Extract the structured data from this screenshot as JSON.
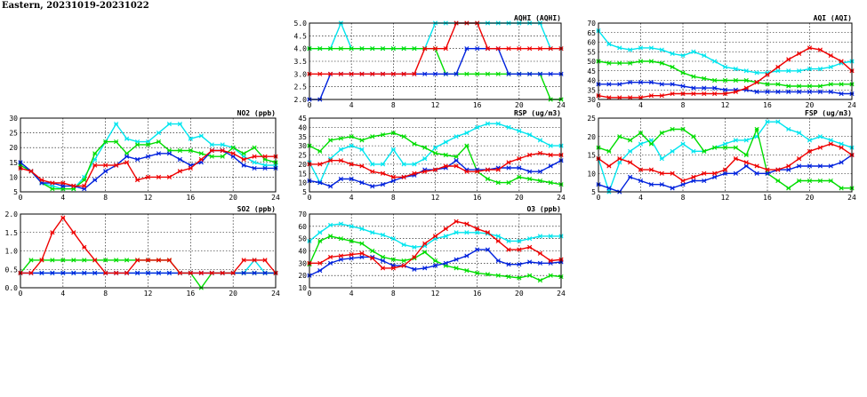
{
  "page": {
    "title": "Eastern, 20231019-20231022"
  },
  "colors": {
    "cyan": "#00e5ee",
    "green": "#00dd00",
    "blue": "#0022dd",
    "red": "#ee0000"
  },
  "chart_data": [
    {
      "id": "aqhi",
      "type": "line",
      "title": "AQHI (AQHI)",
      "xlim": [
        0,
        24
      ],
      "xticks": [
        0,
        4,
        8,
        12,
        16,
        20,
        24
      ],
      "ylim": [
        2.0,
        5.0
      ],
      "yticks": [
        "2.0",
        "2.5",
        "3.0",
        "3.5",
        "4.0",
        "4.5",
        "5.0"
      ],
      "series": [
        {
          "color": "cyan",
          "values": [
            4,
            4,
            4,
            5,
            4,
            4,
            4,
            4,
            4,
            4,
            4,
            4,
            5,
            5,
            5,
            5,
            5,
            5,
            5,
            5,
            5,
            5,
            5,
            4,
            4
          ]
        },
        {
          "color": "green",
          "values": [
            4,
            4,
            4,
            4,
            4,
            4,
            4,
            4,
            4,
            4,
            4,
            4,
            4,
            3,
            3,
            3,
            3,
            3,
            3,
            3,
            3,
            3,
            3,
            2,
            2
          ]
        },
        {
          "color": "blue",
          "values": [
            2,
            2,
            3,
            3,
            3,
            3,
            3,
            3,
            3,
            3,
            3,
            3,
            3,
            3,
            3,
            4,
            4,
            4,
            4,
            3,
            3,
            3,
            3,
            3,
            3
          ]
        },
        {
          "color": "red",
          "values": [
            3,
            3,
            3,
            3,
            3,
            3,
            3,
            3,
            3,
            3,
            3,
            4,
            4,
            4,
            5,
            5,
            5,
            4,
            4,
            4,
            4,
            4,
            4,
            4,
            4
          ]
        }
      ]
    },
    {
      "id": "aqi",
      "type": "line",
      "title": "AQI (AQI)",
      "xlim": [
        0,
        24
      ],
      "xticks": [
        0,
        4,
        8,
        12,
        16,
        20,
        24
      ],
      "ylim": [
        30,
        70
      ],
      "yticks": [
        "30",
        "35",
        "40",
        "45",
        "50",
        "55",
        "60",
        "65",
        "70"
      ],
      "series": [
        {
          "color": "cyan",
          "values": [
            66,
            59,
            57,
            56,
            57,
            57,
            56,
            54,
            53,
            55,
            53,
            50,
            47,
            46,
            45,
            44,
            44,
            45,
            45,
            45,
            46,
            46,
            47,
            49,
            50
          ]
        },
        {
          "color": "green",
          "values": [
            50,
            49,
            49,
            49,
            50,
            50,
            49,
            47,
            44,
            42,
            41,
            40,
            40,
            40,
            40,
            39,
            38,
            38,
            37,
            37,
            37,
            37,
            38,
            38,
            38
          ]
        },
        {
          "color": "blue",
          "values": [
            38,
            38,
            38,
            39,
            39,
            39,
            38,
            38,
            37,
            36,
            36,
            36,
            35,
            35,
            35,
            34,
            34,
            34,
            34,
            34,
            34,
            34,
            34,
            33,
            33
          ]
        },
        {
          "color": "red",
          "values": [
            32,
            31,
            31,
            31,
            31,
            32,
            32,
            33,
            33,
            33,
            33,
            33,
            33,
            34,
            36,
            39,
            43,
            47,
            51,
            54,
            57,
            56,
            53,
            50,
            45
          ]
        }
      ]
    },
    {
      "id": "no2",
      "type": "line",
      "title": "NO2 (ppb)",
      "xlim": [
        0,
        24
      ],
      "xticks": [
        0,
        4,
        8,
        12,
        16,
        20,
        24
      ],
      "ylim": [
        5,
        30
      ],
      "yticks": [
        "5",
        "10",
        "15",
        "20",
        "25",
        "30"
      ],
      "series": [
        {
          "color": "cyan",
          "values": [
            14,
            12,
            8,
            7,
            6,
            6,
            10,
            16,
            22,
            28,
            23,
            22,
            22,
            25,
            28,
            28,
            23,
            24,
            21,
            21,
            20,
            17,
            15,
            14,
            14
          ]
        },
        {
          "color": "green",
          "values": [
            14,
            12,
            8,
            6,
            6,
            6,
            9,
            18,
            22,
            22,
            18,
            21,
            21,
            22,
            19,
            19,
            19,
            18,
            17,
            17,
            20,
            18,
            20,
            16,
            15
          ]
        },
        {
          "color": "blue",
          "values": [
            15,
            12,
            8,
            8,
            7,
            7,
            6,
            9,
            12,
            14,
            17,
            16,
            17,
            18,
            18,
            16,
            14,
            15,
            19,
            19,
            17,
            14,
            13,
            13,
            13
          ]
        },
        {
          "color": "red",
          "values": [
            13,
            12,
            9,
            8,
            8,
            7,
            7,
            14,
            14,
            14,
            15,
            9,
            10,
            10,
            10,
            12,
            13,
            16,
            19,
            19,
            18,
            16,
            17,
            17,
            17
          ]
        }
      ]
    },
    {
      "id": "rsp",
      "type": "line",
      "title": "RSP (ug/m3)",
      "xlim": [
        0,
        24
      ],
      "xticks": [
        0,
        4,
        8,
        12,
        16,
        20,
        24
      ],
      "ylim": [
        5,
        45
      ],
      "yticks": [
        "5",
        "10",
        "15",
        "20",
        "25",
        "30",
        "35",
        "40",
        "45"
      ],
      "series": [
        {
          "color": "cyan",
          "values": [
            21,
            10,
            23,
            28,
            30,
            28,
            20,
            20,
            28,
            20,
            20,
            23,
            29,
            32,
            35,
            37,
            40,
            42,
            42,
            40,
            38,
            36,
            33,
            30,
            30
          ]
        },
        {
          "color": "green",
          "values": [
            30,
            27,
            33,
            34,
            35,
            33,
            35,
            36,
            37,
            35,
            31,
            29,
            26,
            25,
            24,
            30,
            16,
            12,
            10,
            10,
            13,
            12,
            11,
            10,
            9
          ]
        },
        {
          "color": "blue",
          "values": [
            11,
            10,
            8,
            12,
            12,
            10,
            8,
            9,
            11,
            13,
            14,
            17,
            17,
            18,
            22,
            17,
            17,
            17,
            18,
            18,
            18,
            16,
            16,
            19,
            22
          ]
        },
        {
          "color": "red",
          "values": [
            20,
            20,
            22,
            22,
            20,
            19,
            16,
            15,
            13,
            13,
            15,
            16,
            17,
            19,
            19,
            16,
            16,
            17,
            17,
            21,
            23,
            25,
            26,
            25,
            25
          ]
        }
      ]
    },
    {
      "id": "fsp",
      "type": "line",
      "title": "FSP (ug/m3)",
      "xlim": [
        0,
        24
      ],
      "xticks": [
        0,
        4,
        8,
        12,
        16,
        20,
        24
      ],
      "ylim": [
        5,
        25
      ],
      "yticks": [
        "5",
        "10",
        "15",
        "20",
        "25"
      ],
      "series": [
        {
          "color": "cyan",
          "values": [
            14,
            5,
            13,
            16,
            18,
            19,
            14,
            16,
            18,
            16,
            16,
            17,
            18,
            19,
            19,
            20,
            24,
            24,
            22,
            21,
            19,
            20,
            19,
            18,
            17
          ]
        },
        {
          "color": "green",
          "values": [
            17,
            16,
            20,
            19,
            21,
            18,
            21,
            22,
            22,
            20,
            16,
            17,
            17,
            17,
            15,
            22,
            10,
            8,
            6,
            8,
            8,
            8,
            8,
            6,
            6
          ]
        },
        {
          "color": "blue",
          "values": [
            7,
            6,
            5,
            9,
            8,
            7,
            7,
            6,
            7,
            8,
            8,
            9,
            10,
            10,
            12,
            10,
            10,
            11,
            11,
            12,
            12,
            12,
            12,
            13,
            15
          ]
        },
        {
          "color": "red",
          "values": [
            14,
            12,
            14,
            13,
            11,
            11,
            10,
            10,
            8,
            9,
            10,
            10,
            11,
            14,
            13,
            12,
            11,
            11,
            12,
            14,
            16,
            17,
            18,
            17,
            15
          ]
        }
      ]
    },
    {
      "id": "so2",
      "type": "line",
      "title": "SO2 (ppb)",
      "xlim": [
        0,
        24
      ],
      "xticks": [
        0,
        4,
        8,
        12,
        16,
        20,
        24
      ],
      "ylim": [
        0.0,
        2.0
      ],
      "yticks": [
        "0.0",
        "0.5",
        "1.0",
        "1.5",
        "2.0"
      ],
      "series": [
        {
          "color": "cyan",
          "values": [
            0.4,
            0.4,
            0.4,
            0.4,
            0.4,
            0.4,
            0.4,
            0.4,
            0.4,
            0.4,
            0.4,
            0.4,
            0.4,
            0.4,
            0.4,
            0.4,
            0.4,
            0.4,
            0.4,
            0.4,
            0.4,
            0.4,
            0.75,
            0.4,
            0.4
          ]
        },
        {
          "color": "green",
          "values": [
            0.4,
            0.75,
            0.75,
            0.75,
            0.75,
            0.75,
            0.75,
            0.75,
            0.75,
            0.75,
            0.75,
            0.75,
            0.75,
            0.75,
            0.75,
            0.4,
            0.4,
            0.0,
            0.4,
            0.4,
            0.4,
            0.4,
            0.4,
            0.4,
            0.4
          ]
        },
        {
          "color": "blue",
          "values": [
            0.4,
            0.4,
            0.4,
            0.4,
            0.4,
            0.4,
            0.4,
            0.4,
            0.4,
            0.4,
            0.4,
            0.4,
            0.4,
            0.4,
            0.4,
            0.4,
            0.4,
            0.4,
            0.4,
            0.4,
            0.4,
            0.4,
            0.4,
            0.4,
            0.4
          ]
        },
        {
          "color": "red",
          "values": [
            0.4,
            0.4,
            0.75,
            1.5,
            1.9,
            1.5,
            1.1,
            0.75,
            0.4,
            0.4,
            0.4,
            0.75,
            0.75,
            0.75,
            0.75,
            0.4,
            0.4,
            0.4,
            0.4,
            0.4,
            0.4,
            0.75,
            0.75,
            0.75,
            0.4
          ]
        }
      ]
    },
    {
      "id": "o3",
      "type": "line",
      "title": "O3 (ppb)",
      "xlim": [
        0,
        24
      ],
      "xticks": [
        0,
        4,
        8,
        12,
        16,
        20,
        24
      ],
      "ylim": [
        10,
        70
      ],
      "yticks": [
        "10",
        "20",
        "30",
        "40",
        "50",
        "60",
        "70"
      ],
      "series": [
        {
          "color": "cyan",
          "values": [
            48,
            55,
            61,
            62,
            60,
            58,
            55,
            53,
            50,
            45,
            43,
            44,
            50,
            52,
            55,
            55,
            55,
            54,
            52,
            48,
            48,
            50,
            52,
            52,
            52
          ]
        },
        {
          "color": "green",
          "values": [
            29,
            48,
            52,
            50,
            48,
            46,
            40,
            35,
            33,
            32,
            34,
            39,
            32,
            28,
            26,
            24,
            22,
            21,
            20,
            19,
            18,
            20,
            16,
            20,
            19
          ]
        },
        {
          "color": "blue",
          "values": [
            20,
            24,
            30,
            33,
            34,
            35,
            35,
            32,
            28,
            28,
            25,
            26,
            28,
            30,
            33,
            36,
            41,
            41,
            32,
            29,
            29,
            31,
            30,
            30,
            31
          ]
        },
        {
          "color": "red",
          "values": [
            30,
            30,
            35,
            36,
            37,
            38,
            34,
            26,
            26,
            28,
            35,
            46,
            52,
            58,
            64,
            62,
            58,
            55,
            48,
            41,
            41,
            43,
            38,
            32,
            33
          ]
        }
      ]
    }
  ]
}
